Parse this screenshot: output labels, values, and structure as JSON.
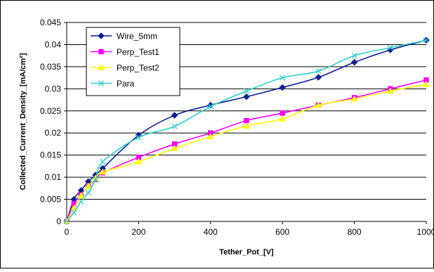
{
  "chart_data": {
    "type": "line",
    "title": "",
    "xlabel": "Tether_Pot_[V]",
    "ylabel": "Collected_Current_Density_[mA/cm²]",
    "xlim": [
      0,
      1000
    ],
    "ylim": [
      0,
      0.045
    ],
    "x_ticks": [
      0,
      200,
      400,
      600,
      800,
      1000
    ],
    "y_ticks": [
      0,
      0.005,
      0.01,
      0.015,
      0.02,
      0.025,
      0.03,
      0.035,
      0.04,
      0.045
    ],
    "x_tick_labels": [
      "0",
      "200",
      "400",
      "600",
      "800",
      "1000"
    ],
    "y_tick_labels": [
      "0",
      "0.005",
      "0.01",
      "0.015",
      "0.02",
      "0.025",
      "0.03",
      "0.035",
      "0.04",
      "0.045"
    ],
    "grid": "horizontal",
    "legend_position": "top-left",
    "series": [
      {
        "name": "Wire_5mm",
        "color": "#0a1f8f",
        "marker": "diamond",
        "x": [
          0,
          20,
          40,
          60,
          80,
          100,
          200,
          300,
          400,
          500,
          600,
          700,
          800,
          900,
          1000
        ],
        "y": [
          0,
          0.005,
          0.007,
          0.009,
          0.0105,
          0.012,
          0.0195,
          0.024,
          0.0263,
          0.0282,
          0.0303,
          0.0326,
          0.036,
          0.0388,
          0.041
        ]
      },
      {
        "name": "Perp_Test1",
        "color": "#ff00ff",
        "marker": "square",
        "x": [
          0,
          20,
          40,
          60,
          80,
          100,
          200,
          300,
          400,
          500,
          600,
          700,
          800,
          900,
          1000
        ],
        "y": [
          0,
          0.004,
          0.006,
          0.008,
          0.0095,
          0.011,
          0.0145,
          0.0175,
          0.02,
          0.0228,
          0.0245,
          0.0263,
          0.028,
          0.03,
          0.032
        ]
      },
      {
        "name": "Perp_Test2",
        "color": "#ffff00",
        "marker": "triangle",
        "x": [
          0,
          20,
          40,
          60,
          80,
          100,
          200,
          300,
          400,
          500,
          600,
          700,
          800,
          900,
          1000
        ],
        "y": [
          0,
          0.003,
          0.0058,
          0.008,
          0.0098,
          0.0112,
          0.0135,
          0.0165,
          0.0192,
          0.0216,
          0.0232,
          0.0263,
          0.0277,
          0.0295,
          0.031
        ]
      },
      {
        "name": "Para",
        "color": "#33cccc",
        "marker": "x",
        "x": [
          0,
          20,
          40,
          60,
          80,
          100,
          200,
          300,
          400,
          500,
          600,
          700,
          800,
          900,
          1000
        ],
        "y": [
          0,
          0.002,
          0.0045,
          0.0065,
          0.0095,
          0.0135,
          0.019,
          0.0215,
          0.026,
          0.0295,
          0.0325,
          0.034,
          0.0375,
          0.0393,
          0.041
        ]
      }
    ]
  }
}
